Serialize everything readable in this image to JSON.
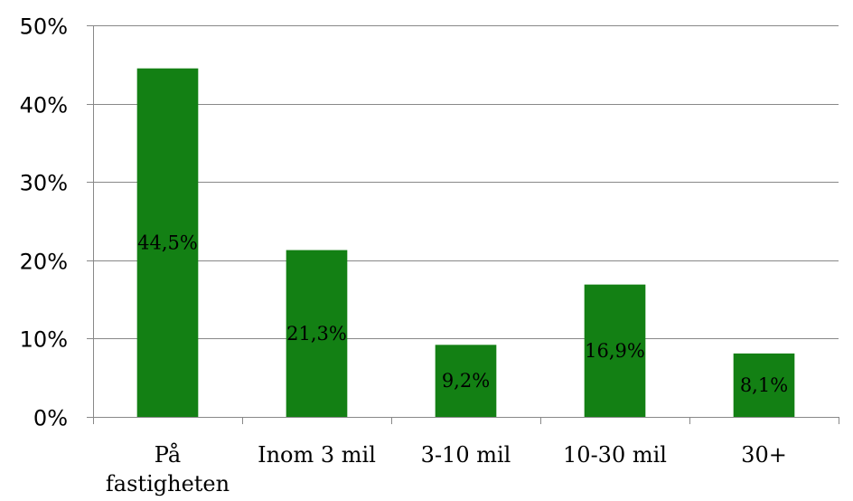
{
  "chart_data": {
    "type": "bar",
    "categories": [
      "På fastigheten",
      "Inom 3 mil",
      "3-10 mil",
      "10-30 mil",
      "30+"
    ],
    "values": [
      44.5,
      21.3,
      9.2,
      16.9,
      8.1
    ],
    "data_labels": [
      "44,5%",
      "21,3%",
      "9,2%",
      "16,9%",
      "8,1%"
    ],
    "y_tick_labels": [
      "0%",
      "10%",
      "20%",
      "30%",
      "40%",
      "50%"
    ],
    "y_ticks": [
      0,
      10,
      20,
      30,
      40,
      50
    ],
    "ylim": [
      0,
      50
    ],
    "bar_color": "#138014",
    "grid": true,
    "legend": "none"
  }
}
